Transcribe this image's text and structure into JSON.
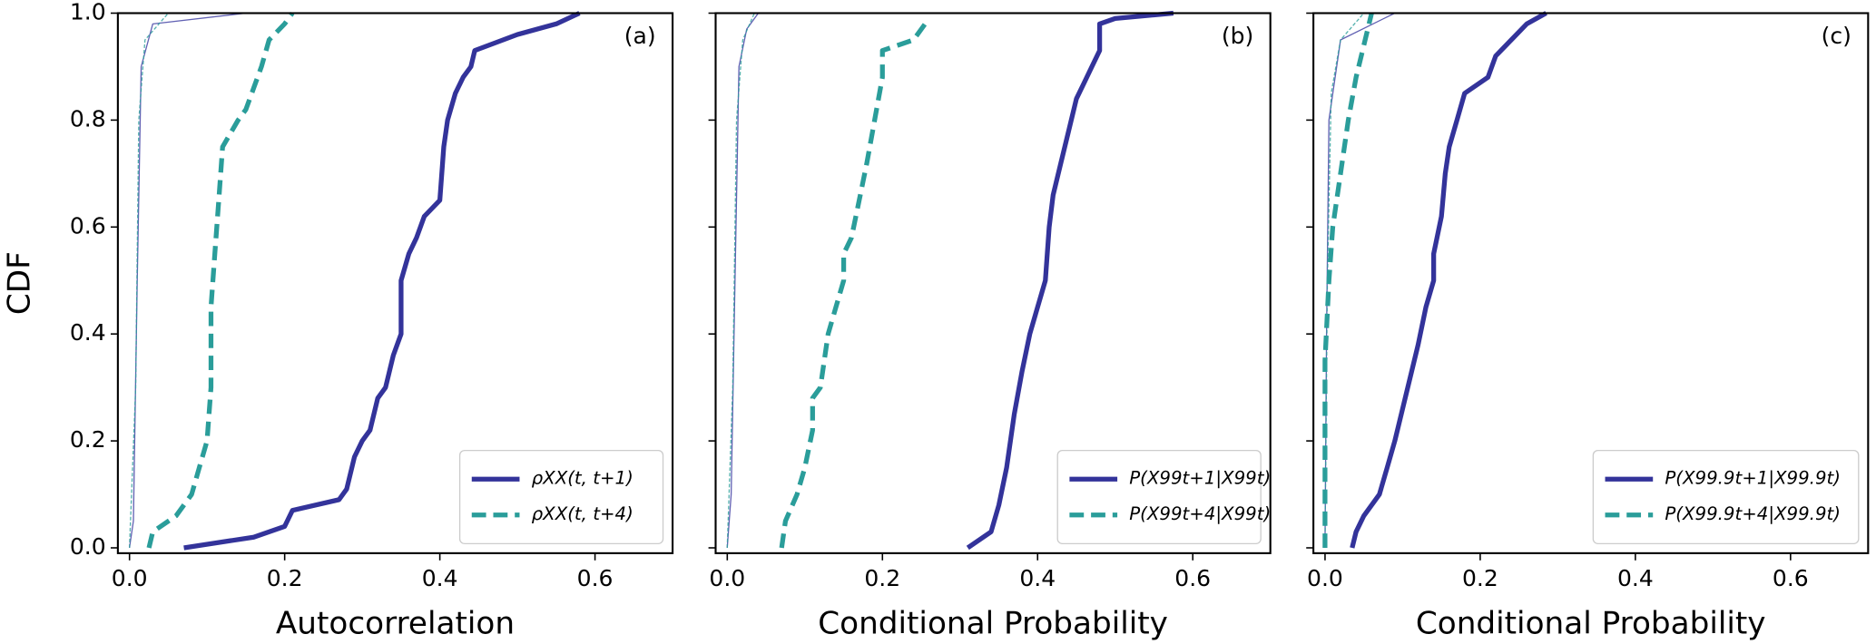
{
  "chart_data": [
    {
      "type": "line",
      "annotation": "(a)",
      "xlabel": "Autocorrelation",
      "ylabel": "CDF",
      "xlim": [
        -0.015,
        0.7
      ],
      "ylim": [
        -0.01,
        1.0
      ],
      "xticks": [
        {
          "value": 0,
          "label": "0.0"
        },
        0.2,
        0.4,
        0.6
      ],
      "yticks": [
        {
          "value": 0,
          "label": "0.0"
        },
        0.2,
        0.4,
        0.6,
        0.8,
        {
          "value": 1,
          "label": "1.0"
        }
      ],
      "legend": "lower right",
      "series": [
        {
          "color": "#3a3aa0",
          "linestyle": "solid",
          "linewidth": 1,
          "x": [
            0.0,
            0.005,
            0.01,
            0.015,
            0.03,
            0.15
          ],
          "y": [
            0,
            0.05,
            0.5,
            0.9,
            0.98,
            1.0
          ]
        },
        {
          "color": "#2a9d9a",
          "linestyle": "dashed",
          "linewidth": 1,
          "x": [
            0.0,
            0.008,
            0.012,
            0.02,
            0.05
          ],
          "y": [
            0,
            0.3,
            0.8,
            0.95,
            1.0
          ]
        },
        {
          "name": "ρXX(t, t+1)",
          "color": "#33339a",
          "linestyle": "solid",
          "linewidth": 4,
          "x": [
            0.07,
            0.16,
            0.2,
            0.21,
            0.27,
            0.28,
            0.29,
            0.3,
            0.31,
            0.32,
            0.33,
            0.34,
            0.35,
            0.35,
            0.36,
            0.37,
            0.38,
            0.4,
            0.405,
            0.41,
            0.42,
            0.43,
            0.44,
            0.445,
            0.5,
            0.55,
            0.58
          ],
          "y": [
            0,
            0.02,
            0.04,
            0.07,
            0.09,
            0.11,
            0.17,
            0.2,
            0.22,
            0.28,
            0.3,
            0.36,
            0.4,
            0.5,
            0.55,
            0.58,
            0.62,
            0.65,
            0.75,
            0.8,
            0.85,
            0.88,
            0.9,
            0.93,
            0.96,
            0.98,
            1.0
          ]
        },
        {
          "name": "ρXX(t, t+4)",
          "color": "#2a9d9a",
          "linestyle": "dashed",
          "linewidth": 4,
          "x": [
            0.025,
            0.03,
            0.06,
            0.08,
            0.09,
            0.1,
            0.105,
            0.105,
            0.11,
            0.115,
            0.12,
            0.14,
            0.15,
            0.16,
            0.17,
            0.18,
            0.2,
            0.21
          ],
          "y": [
            0,
            0.03,
            0.06,
            0.1,
            0.15,
            0.2,
            0.3,
            0.45,
            0.55,
            0.65,
            0.75,
            0.8,
            0.82,
            0.86,
            0.9,
            0.95,
            0.98,
            1.0
          ]
        }
      ]
    },
    {
      "type": "line",
      "annotation": "(b)",
      "xlabel": "Conditional Probability",
      "xlim": [
        -0.015,
        0.7
      ],
      "ylim": [
        -0.01,
        1.0
      ],
      "xticks": [
        {
          "value": 0,
          "label": "0.0"
        },
        0.2,
        0.4,
        0.6
      ],
      "yticks": [
        0,
        0.2,
        0.4,
        0.6,
        0.8,
        1
      ],
      "legend": "lower right",
      "series": [
        {
          "color": "#3a3aa0",
          "linestyle": "solid",
          "linewidth": 1,
          "x": [
            0.0,
            0.005,
            0.01,
            0.015,
            0.025,
            0.04
          ],
          "y": [
            0,
            0.1,
            0.5,
            0.9,
            0.97,
            1.0
          ]
        },
        {
          "color": "#2a9d9a",
          "linestyle": "dashed",
          "linewidth": 1,
          "x": [
            0.0,
            0.007,
            0.012,
            0.02,
            0.035
          ],
          "y": [
            0,
            0.3,
            0.8,
            0.95,
            1.0
          ]
        },
        {
          "name": "P(X99t+1|X99t)",
          "color": "#33339a",
          "linestyle": "solid",
          "linewidth": 4,
          "x": [
            0.31,
            0.34,
            0.35,
            0.36,
            0.37,
            0.38,
            0.39,
            0.4,
            0.41,
            0.415,
            0.42,
            0.43,
            0.44,
            0.45,
            0.46,
            0.47,
            0.48,
            0.48,
            0.5,
            0.575
          ],
          "y": [
            0,
            0.03,
            0.08,
            0.15,
            0.25,
            0.33,
            0.4,
            0.45,
            0.5,
            0.6,
            0.66,
            0.72,
            0.78,
            0.84,
            0.87,
            0.9,
            0.93,
            0.98,
            0.99,
            1.0
          ]
        },
        {
          "name": "P(X99t+4|X99t)",
          "color": "#2a9d9a",
          "linestyle": "dashed",
          "linewidth": 4,
          "x": [
            0.07,
            0.075,
            0.09,
            0.1,
            0.11,
            0.11,
            0.12,
            0.13,
            0.14,
            0.15,
            0.15,
            0.16,
            0.17,
            0.18,
            0.19,
            0.2,
            0.2,
            0.24,
            0.26
          ],
          "y": [
            0,
            0.05,
            0.1,
            0.15,
            0.22,
            0.28,
            0.3,
            0.4,
            0.45,
            0.5,
            0.55,
            0.58,
            0.65,
            0.72,
            0.8,
            0.88,
            0.93,
            0.95,
            0.99
          ]
        }
      ]
    },
    {
      "type": "line",
      "annotation": "(c)",
      "xlabel": "Conditional Probability",
      "xlim": [
        -0.015,
        0.7
      ],
      "ylim": [
        -0.01,
        1.0
      ],
      "xticks": [
        {
          "value": 0,
          "label": "0.0"
        },
        0.2,
        0.4,
        0.6
      ],
      "yticks": [
        0,
        0.2,
        0.4,
        0.6,
        0.8,
        1
      ],
      "legend": "lower right",
      "series": [
        {
          "color": "#3a3aa0",
          "linestyle": "solid",
          "linewidth": 1,
          "x": [
            0.0,
            0.002,
            0.005,
            0.02,
            0.09
          ],
          "y": [
            0,
            0.4,
            0.8,
            0.95,
            1.0
          ]
        },
        {
          "color": "#2a9d9a",
          "linestyle": "dashed",
          "linewidth": 1,
          "x": [
            0.0,
            0.003,
            0.008,
            0.02,
            0.05
          ],
          "y": [
            0,
            0.5,
            0.85,
            0.95,
            1.0
          ]
        },
        {
          "name": "P(X99.9t+1|X99.9t)",
          "color": "#33339a",
          "linestyle": "solid",
          "linewidth": 4,
          "x": [
            0.035,
            0.04,
            0.05,
            0.07,
            0.08,
            0.09,
            0.1,
            0.11,
            0.12,
            0.13,
            0.14,
            0.14,
            0.15,
            0.155,
            0.16,
            0.17,
            0.18,
            0.21,
            0.22,
            0.24,
            0.26,
            0.285
          ],
          "y": [
            0,
            0.03,
            0.06,
            0.1,
            0.15,
            0.2,
            0.26,
            0.32,
            0.38,
            0.45,
            0.5,
            0.55,
            0.62,
            0.7,
            0.75,
            0.8,
            0.85,
            0.88,
            0.92,
            0.95,
            0.98,
            1.0
          ]
        },
        {
          "name": "P(X99.9t+4|X99.9t)",
          "color": "#2a9d9a",
          "linestyle": "dashed",
          "linewidth": 4,
          "x": [
            0.0,
            0.0,
            0.005,
            0.01,
            0.02,
            0.03,
            0.04,
            0.05,
            0.06
          ],
          "y": [
            0,
            0.35,
            0.5,
            0.6,
            0.7,
            0.8,
            0.88,
            0.94,
            1.0
          ]
        }
      ]
    }
  ]
}
